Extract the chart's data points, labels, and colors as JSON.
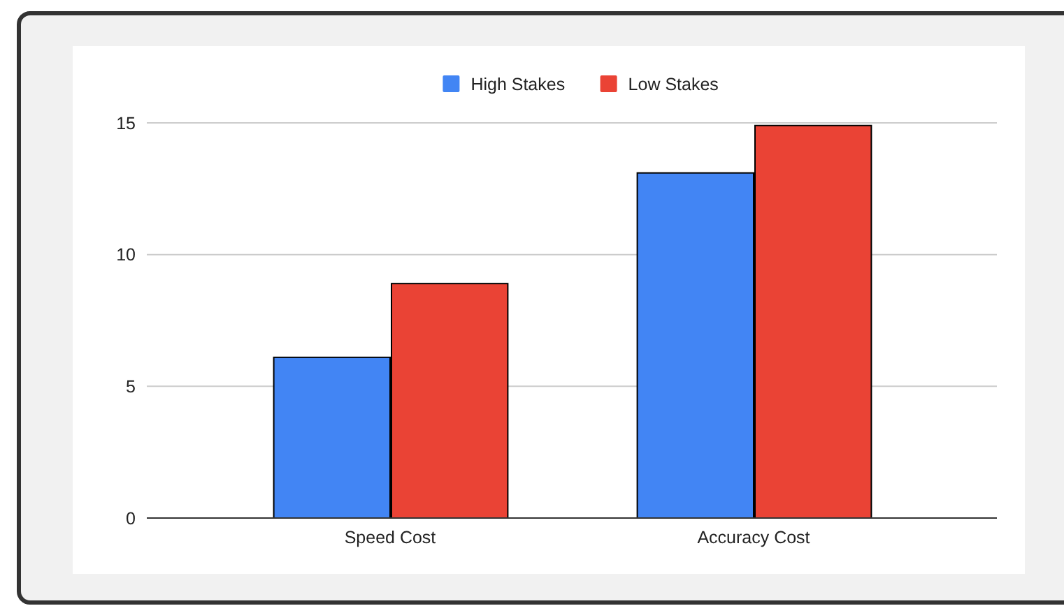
{
  "chart_data": {
    "type": "bar",
    "categories": [
      "Speed Cost",
      "Accuracy Cost"
    ],
    "series": [
      {
        "name": "High Stakes",
        "color": "#4285f4",
        "values": [
          6.1,
          13.1
        ]
      },
      {
        "name": "Low Stakes",
        "color": "#ea4335",
        "values": [
          8.9,
          14.9
        ]
      }
    ],
    "ylim": [
      0,
      15
    ],
    "yticks": [
      0,
      5,
      10,
      15
    ],
    "grid": "y",
    "legend": "top"
  }
}
